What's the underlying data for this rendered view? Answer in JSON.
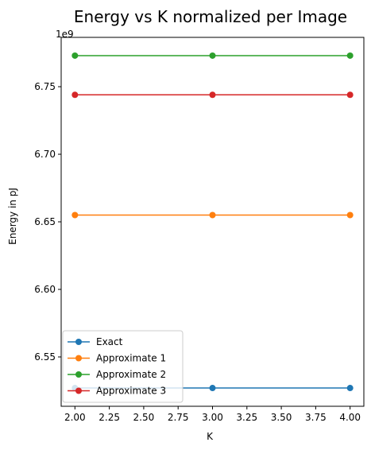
{
  "chart_data": {
    "type": "line",
    "title": "Energy vs K normalized per Image",
    "xlabel": "K",
    "ylabel": "Energy in pJ",
    "y_offset_label": "1e9",
    "x": [
      2.0,
      3.0,
      4.0
    ],
    "xlim": [
      1.9,
      4.1
    ],
    "ylim": [
      6.5135,
      6.7865
    ],
    "x_ticks": [
      "2.00",
      "2.25",
      "2.50",
      "2.75",
      "3.00",
      "3.25",
      "3.50",
      "3.75",
      "4.00"
    ],
    "x_tick_values": [
      2.0,
      2.25,
      2.5,
      2.75,
      3.0,
      3.25,
      3.5,
      3.75,
      4.0
    ],
    "y_ticks": [
      "6.55",
      "6.60",
      "6.65",
      "6.70",
      "6.75"
    ],
    "y_tick_values": [
      6.55,
      6.6,
      6.65,
      6.7,
      6.75
    ],
    "grid": false,
    "legend_position": "lower-left",
    "series": [
      {
        "name": "Exact",
        "color": "#1f77b4",
        "values": [
          6.527,
          6.527,
          6.527
        ]
      },
      {
        "name": "Approximate 1",
        "color": "#ff7f0e",
        "values": [
          6.655,
          6.655,
          6.655
        ]
      },
      {
        "name": "Approximate 2",
        "color": "#2ca02c",
        "values": [
          6.773,
          6.773,
          6.773
        ]
      },
      {
        "name": "Approximate 3",
        "color": "#d62728",
        "values": [
          6.744,
          6.744,
          6.744
        ]
      }
    ]
  }
}
